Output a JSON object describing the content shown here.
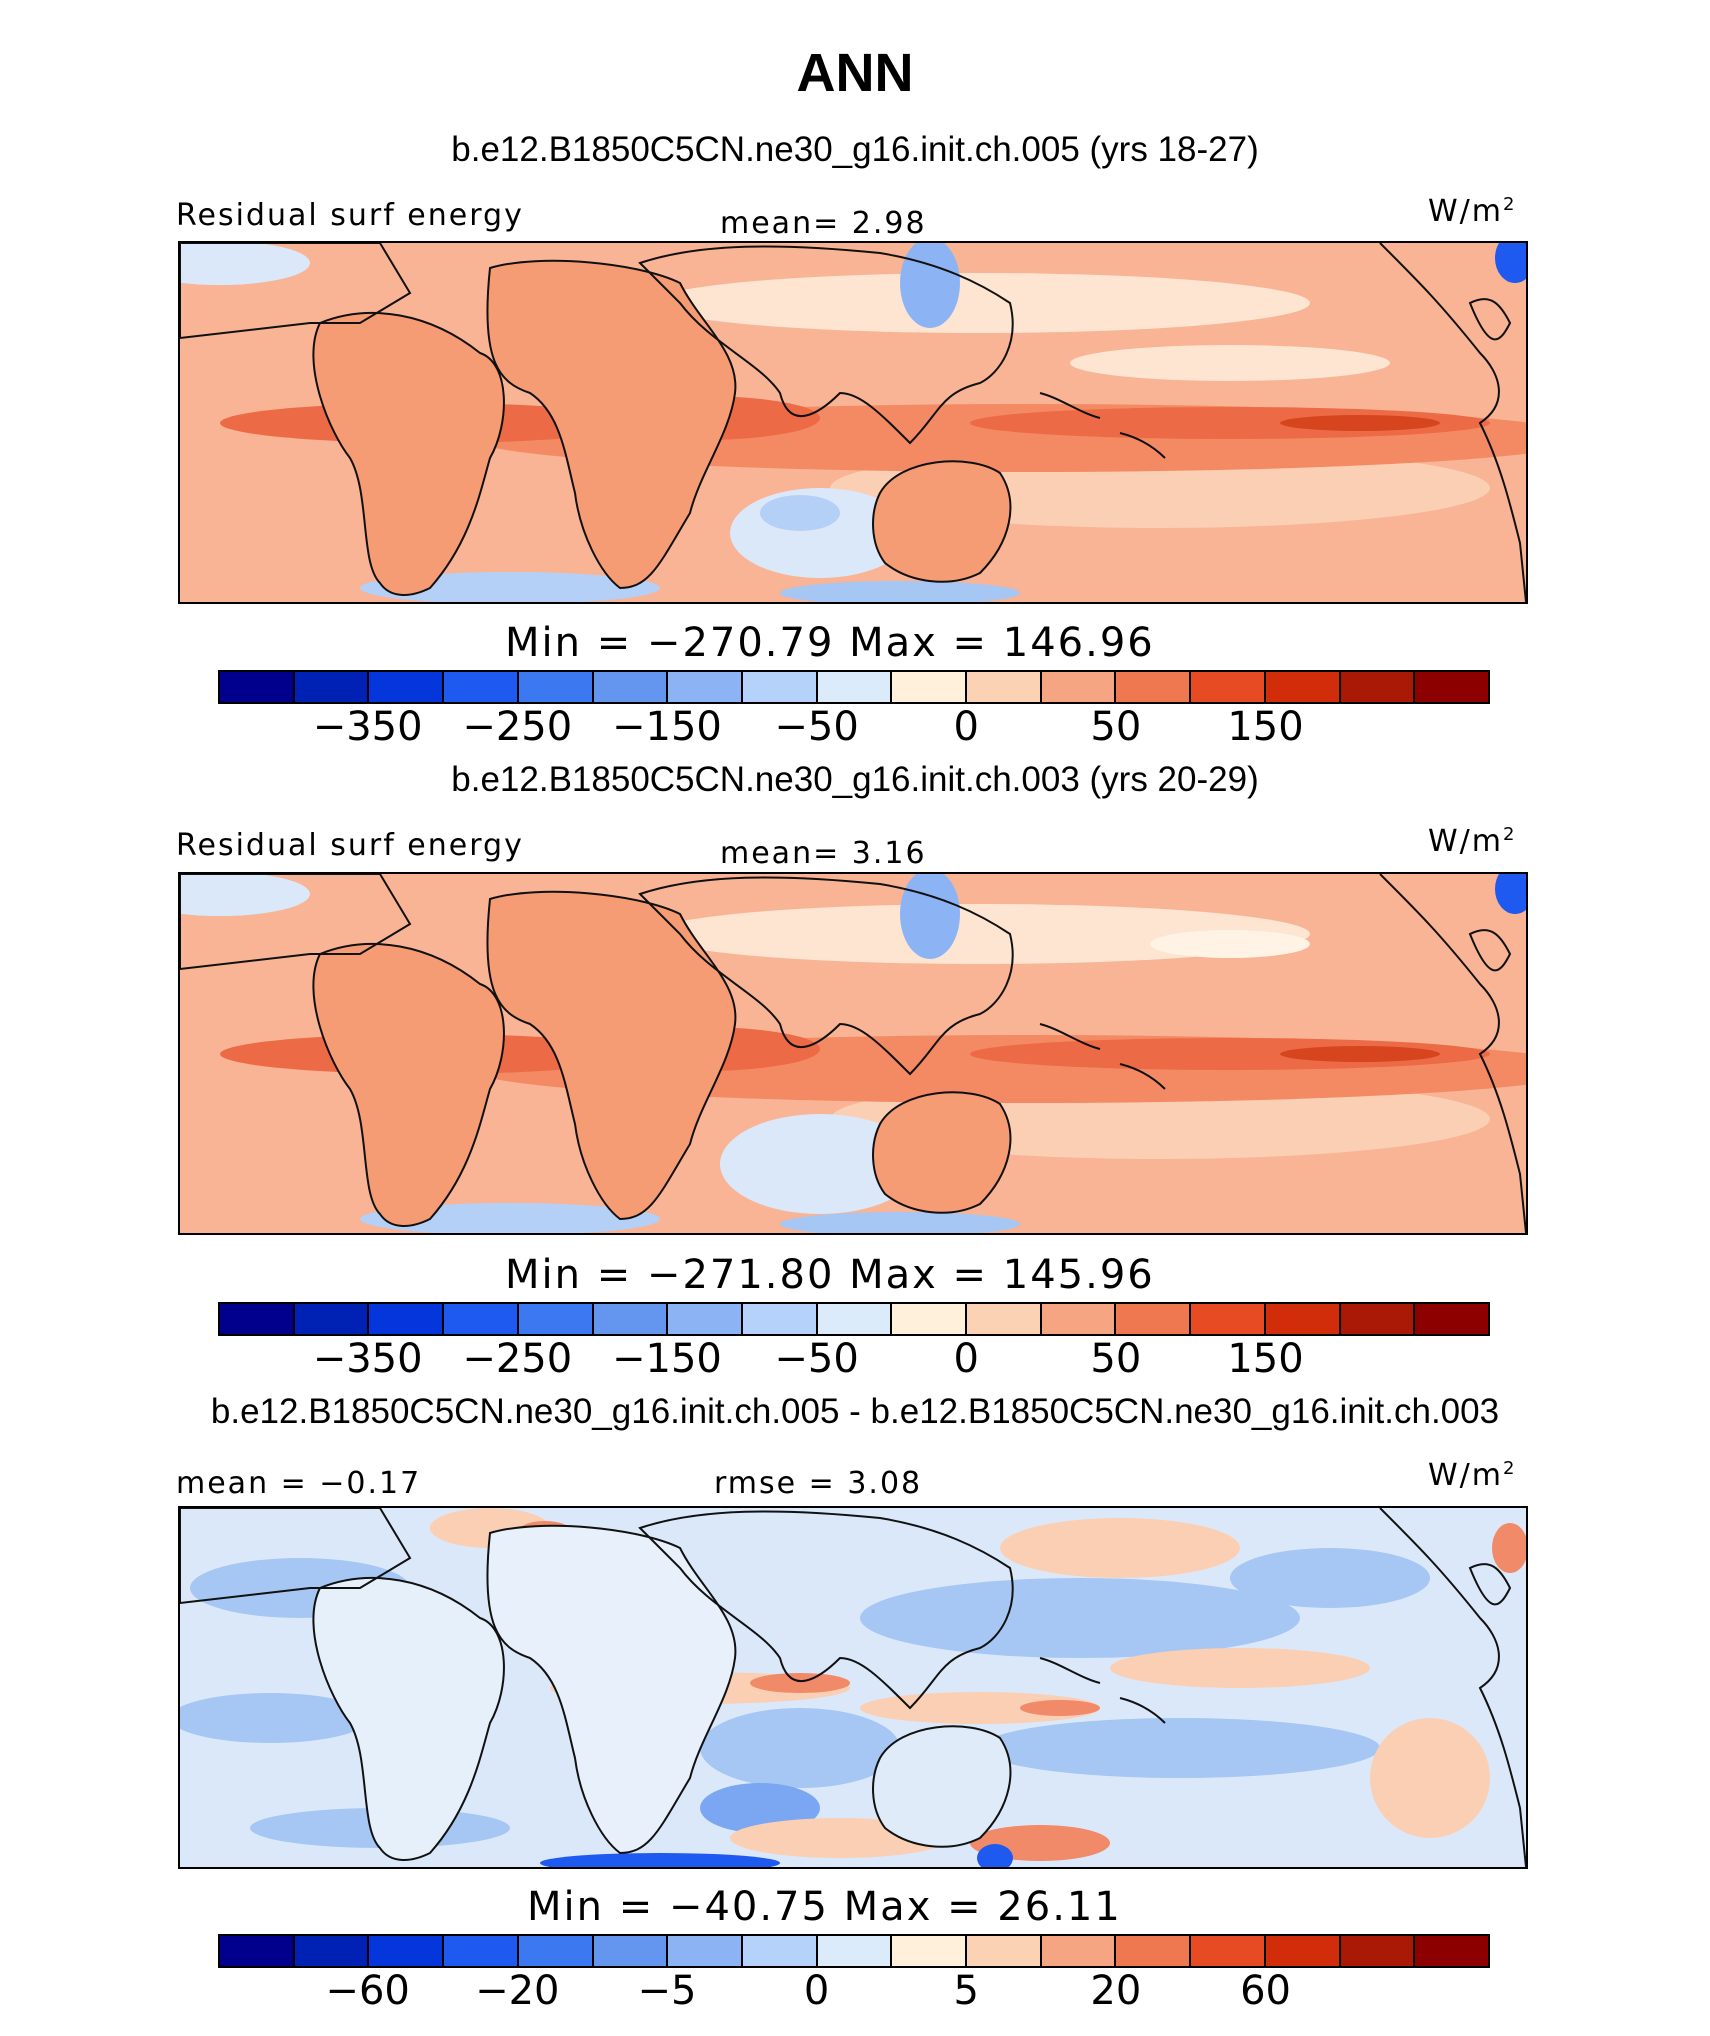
{
  "figure": {
    "title": "ANN",
    "units_base": "W/m",
    "units_exp": "2"
  },
  "panels": [
    {
      "title": "b.e12.B1850C5CN.ne30_g16.init.ch.005 (yrs 18-27)",
      "left_label": "Residual surf energy",
      "center_label": "mean=   2.98",
      "minmax": "Min = −270.79 Max = 146.96",
      "tick_labels": [
        "−350",
        "−250",
        "−150",
        "−50",
        "0",
        "50",
        "150"
      ]
    },
    {
      "title": "b.e12.B1850C5CN.ne30_g16.init.ch.003 (yrs 20-29)",
      "left_label": "Residual surf energy",
      "center_label": "mean=   3.16",
      "minmax": "Min = −271.80 Max = 145.96",
      "tick_labels": [
        "−350",
        "−250",
        "−150",
        "−50",
        "0",
        "50",
        "150"
      ]
    },
    {
      "title": "b.e12.B1850C5CN.ne30_g16.init.ch.005 - b.e12.B1850C5CN.ne30_g16.init.ch.003",
      "left_label": "mean =  −0.17",
      "center_label": "rmse =    3.08",
      "minmax": "Min = −40.75 Max =  26.11",
      "tick_labels": [
        "−60",
        "−20",
        "−5",
        "0",
        "5",
        "20",
        "60"
      ]
    }
  ],
  "colorbar_colors": [
    "#00008c",
    "#0022b4",
    "#0536dc",
    "#1e5af0",
    "#3c78f0",
    "#6496f0",
    "#8cb4f5",
    "#b4d2fa",
    "#dcebfa",
    "#fff0dc",
    "#fcd2b4",
    "#f5a582",
    "#f07850",
    "#e64b23",
    "#d22d0a",
    "#aa1905",
    "#8c0000"
  ],
  "palette": {
    "ocean_base": "#f8b494",
    "band_strong": "#ec6a46",
    "band_mid": "#f38a64",
    "light": "#fde5d2",
    "blue_light": "#d4e6fa",
    "blue_mid": "#a6c6f4",
    "blue_strong": "#5e8ef0",
    "diff_base": "#dbe8fa",
    "diff_warm": "#fbcfb3",
    "diff_red": "#f08a68",
    "coast": "#111111"
  }
}
